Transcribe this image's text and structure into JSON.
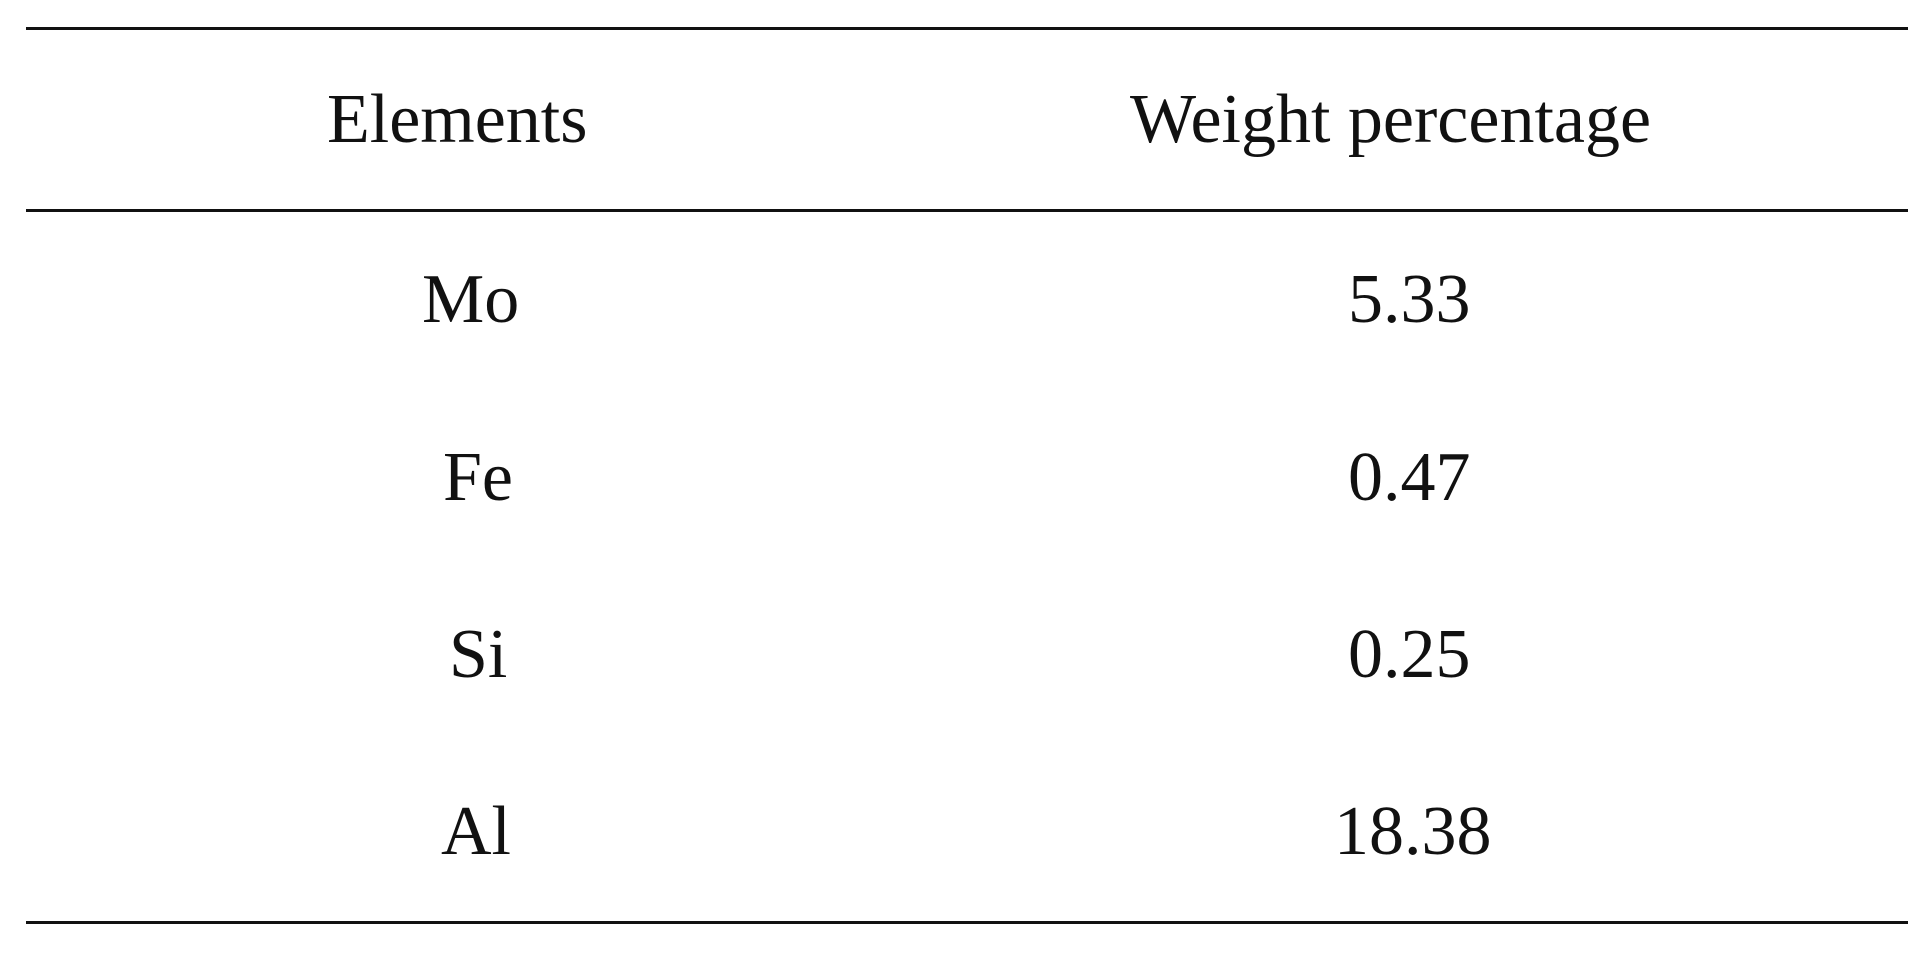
{
  "table": {
    "headers": [
      "Elements",
      "Weight percentage"
    ],
    "rows": [
      {
        "element": "Mo",
        "weight": "5.33"
      },
      {
        "element": "Fe",
        "weight": "0.47"
      },
      {
        "element": "Si",
        "weight": "0.25"
      },
      {
        "element": "Al",
        "weight": "18.38"
      }
    ]
  }
}
